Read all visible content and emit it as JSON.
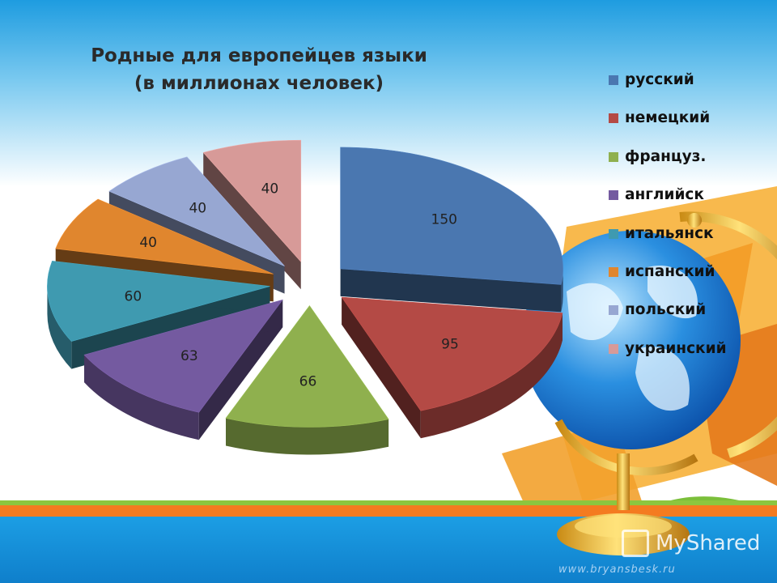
{
  "chart_data": {
    "type": "pie",
    "title": [
      "Родные для европейцев языки",
      "(в миллионах человек)"
    ],
    "categories": [
      "русский",
      "немецкий",
      "француз.",
      "английск",
      "итальянск",
      "испанский",
      "польский",
      "украинский"
    ],
    "values": [
      150,
      95,
      66,
      63,
      60,
      40,
      40,
      40
    ],
    "colors": [
      "#4a77b0",
      "#b44a45",
      "#8fb04e",
      "#745aa0",
      "#3f9ab0",
      "#e0862e",
      "#97a7d2",
      "#d79a98"
    ],
    "data_labels": [
      "150",
      "95",
      "66",
      "63",
      "60",
      "40",
      "40",
      "40"
    ],
    "legend": "right",
    "style": "3d-exploded"
  },
  "branding": {
    "text": "MyShared",
    "url": "www.bryansbesk.ru"
  }
}
